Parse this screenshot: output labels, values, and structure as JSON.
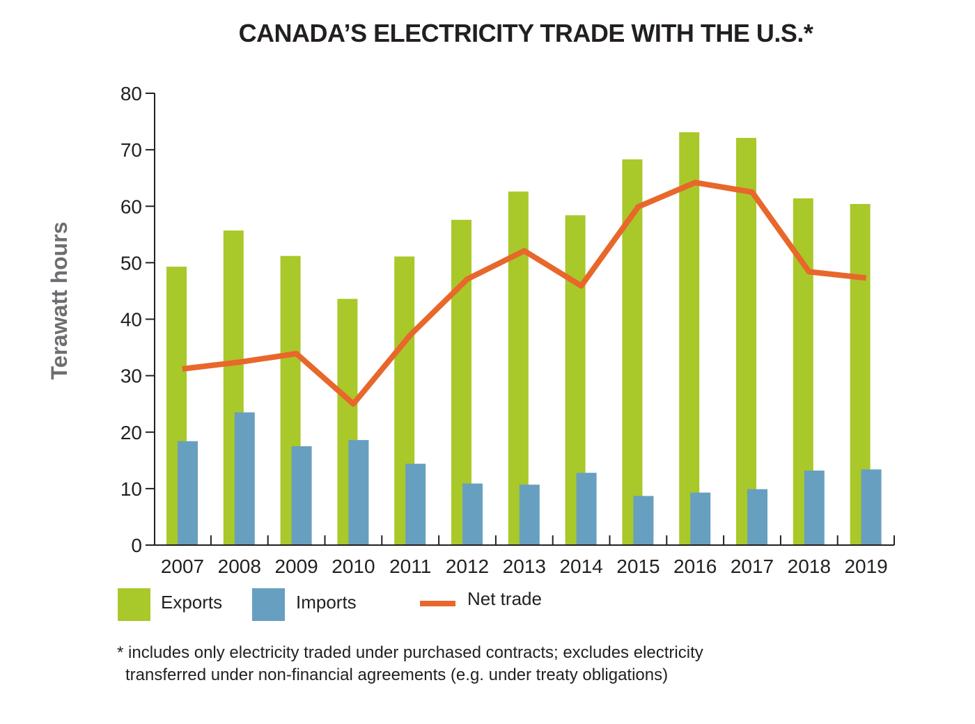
{
  "chart_data": {
    "type": "bar",
    "title": "CANADA’S ELECTRICITY TRADE WITH THE U.S.*",
    "xlabel": "",
    "ylabel": "Terawatt hours",
    "ylim": [
      0,
      80
    ],
    "yticks": [
      0,
      10,
      20,
      30,
      40,
      50,
      60,
      70,
      80
    ],
    "grid": false,
    "legend_position": "bottom",
    "categories": [
      "2007",
      "2008",
      "2009",
      "2010",
      "2011",
      "2012",
      "2013",
      "2014",
      "2015",
      "2016",
      "2017",
      "2018",
      "2019"
    ],
    "series": [
      {
        "name": "Exports",
        "type": "bar",
        "color": "#a9c82a",
        "values": [
          49.3,
          55.7,
          51.2,
          43.6,
          51.1,
          57.6,
          62.6,
          58.4,
          68.3,
          73.1,
          72.1,
          61.4,
          60.4
        ]
      },
      {
        "name": "Imports",
        "type": "bar",
        "color": "#679fc0",
        "values": [
          18.4,
          23.5,
          17.5,
          18.6,
          14.4,
          10.9,
          10.7,
          12.8,
          8.7,
          9.3,
          9.9,
          13.2,
          13.4
        ]
      },
      {
        "name": "Net trade",
        "type": "line",
        "color": "#e8672a",
        "values": [
          31.2,
          32.4,
          33.9,
          25.0,
          37.2,
          47.1,
          52.1,
          45.9,
          59.9,
          64.2,
          62.5,
          48.4,
          47.3
        ]
      }
    ]
  },
  "footnote": {
    "line1": "* includes only electricity traded under purchased contracts; excludes electricity",
    "line2": "transferred under non-financial agreements (e.g. under treaty obligations)"
  }
}
